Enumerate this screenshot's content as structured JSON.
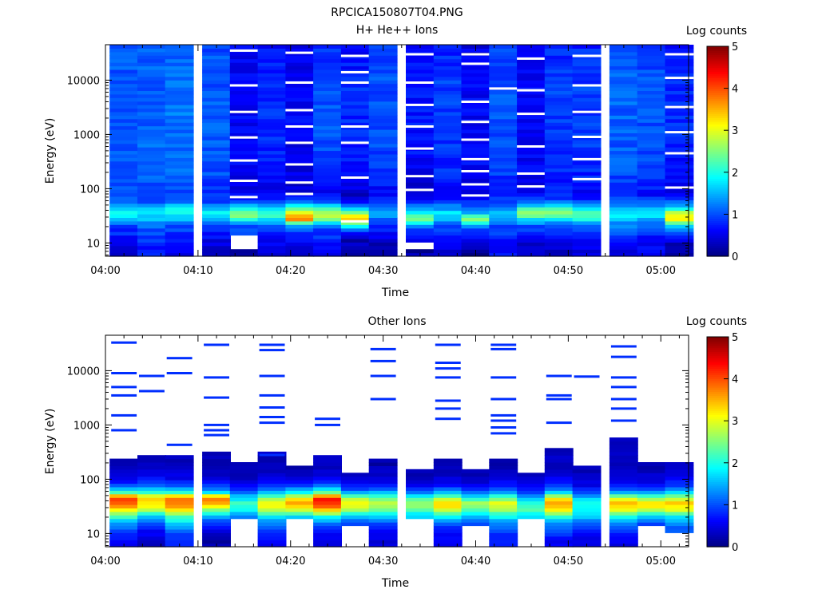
{
  "figure_title": "RPCICA150807T04.PNG",
  "chart_data": [
    {
      "type": "heatmap",
      "title": "H+ He++ Ions",
      "xlabel": "Time",
      "ylabel": "Energy (eV)",
      "yscale": "log",
      "ylim": [
        5.7,
        45000
      ],
      "xlim": [
        "04:00",
        "05:03"
      ],
      "x_ticks": [
        "04:00",
        "04:10",
        "04:20",
        "04:30",
        "04:40",
        "04:50",
        "05:00"
      ],
      "y_ticks": [
        "10",
        "100",
        "1000",
        "10000"
      ],
      "colorbar": {
        "label": "Log counts",
        "range": [
          0,
          5
        ],
        "ticks": [
          "0",
          "1",
          "2",
          "3",
          "4",
          "5"
        ],
        "colormap": "jet"
      },
      "grid": false,
      "time_bins": [
        "04:02",
        "04:05",
        "04:08",
        "04:12",
        "04:15",
        "04:18",
        "04:21",
        "04:24",
        "04:27",
        "04:30",
        "04:34",
        "04:37",
        "04:40",
        "04:43",
        "04:46",
        "04:49",
        "04:52",
        "04:56",
        "04:59",
        "05:02"
      ],
      "profile_energy_eV": [
        7,
        9,
        12,
        16,
        21,
        28,
        36,
        46,
        60,
        80,
        110,
        200,
        1000,
        10000,
        40000
      ],
      "columns": [
        {
          "time": "04:02",
          "profile": [
            0.5,
            0.6,
            0.7,
            0.8,
            0.9,
            1.5,
            2.0,
            1.6,
            1.0,
            0.9,
            1.0,
            1.0,
            1.0,
            1.05,
            1.1
          ],
          "gaps": []
        },
        {
          "time": "04:05",
          "profile": [
            0.7,
            0.8,
            0.9,
            1.0,
            1.1,
            1.6,
            1.9,
            1.5,
            1.0,
            0.9,
            1.0,
            1.1,
            1.1,
            1.1,
            1.1
          ],
          "gaps": []
        },
        {
          "time": "04:08",
          "profile": [
            0.6,
            0.7,
            0.8,
            0.9,
            1.0,
            1.5,
            2.0,
            1.7,
            1.1,
            0.9,
            1.0,
            1.1,
            1.2,
            1.15,
            1.1
          ],
          "gaps": []
        },
        {
          "time": "04:12",
          "profile": [
            0.3,
            0.4,
            0.6,
            0.8,
            1.0,
            1.4,
            1.8,
            1.4,
            0.9,
            0.8,
            0.9,
            1.0,
            1.05,
            1.05,
            1.0
          ],
          "gaps": []
        },
        {
          "time": "04:15",
          "profile": [
            0.2,
            null,
            null,
            0.9,
            1.1,
            2.2,
            2.6,
            1.8,
            0.9,
            0.5,
            0.5,
            0.6,
            0.6,
            0.6,
            0.6
          ],
          "gaps": [
            70,
            140,
            330,
            880,
            2600,
            8000,
            35000
          ]
        },
        {
          "time": "04:18",
          "profile": [
            0.4,
            0.5,
            0.6,
            0.9,
            1.2,
            1.8,
            2.2,
            1.6,
            0.8,
            0.5,
            0.6,
            0.8,
            0.8,
            0.8,
            0.7
          ],
          "gaps": []
        },
        {
          "time": "04:21",
          "profile": [
            0.3,
            0.4,
            0.6,
            0.9,
            1.4,
            3.8,
            3.2,
            2.2,
            1.0,
            0.5,
            0.4,
            0.5,
            0.6,
            0.6,
            0.5
          ],
          "gaps": [
            80,
            130,
            280,
            700,
            1400,
            2800,
            9000,
            32000
          ]
        },
        {
          "time": "04:24",
          "profile": [
            0.6,
            0.7,
            0.8,
            0.9,
            1.1,
            2.6,
            2.9,
            2.2,
            1.0,
            0.6,
            0.7,
            0.9,
            1.0,
            1.0,
            0.8
          ],
          "gaps": []
        },
        {
          "time": "04:27",
          "profile": [
            0.2,
            0.3,
            0.3,
            0.6,
            2.0,
            3.4,
            2.6,
            1.4,
            0.7,
            0.3,
            0.5,
            0.7,
            0.8,
            0.8,
            0.6
          ],
          "gaps": [
            25,
            160,
            700,
            1400,
            9000,
            14000,
            28000
          ]
        },
        {
          "time": "04:30",
          "profile": [
            0.2,
            0.3,
            0.4,
            0.6,
            0.9,
            1.2,
            1.6,
            1.3,
            0.8,
            0.5,
            0.7,
            0.9,
            1.0,
            1.0,
            0.9
          ],
          "gaps": []
        },
        {
          "time": "04:34",
          "profile": [
            0.2,
            null,
            0.5,
            0.8,
            1.3,
            2.6,
            2.0,
            1.4,
            0.8,
            0.3,
            0.4,
            0.6,
            0.7,
            0.7,
            0.6
          ],
          "gaps": [
            95,
            170,
            550,
            1400,
            3500,
            9000,
            30000
          ]
        },
        {
          "time": "04:37",
          "profile": [
            0.3,
            0.5,
            0.6,
            0.8,
            1.0,
            1.5,
            1.8,
            1.3,
            0.8,
            0.6,
            0.7,
            0.8,
            0.9,
            0.9,
            0.8
          ],
          "gaps": []
        },
        {
          "time": "04:40",
          "profile": [
            0.1,
            0.3,
            0.5,
            0.8,
            1.4,
            2.6,
            1.6,
            1.2,
            0.8,
            0.4,
            0.5,
            0.6,
            0.6,
            0.6,
            0.5
          ],
          "gaps": [
            75,
            120,
            210,
            350,
            800,
            1700,
            4000,
            20000,
            30000
          ]
        },
        {
          "time": "04:43",
          "profile": [
            0.6,
            0.7,
            0.8,
            0.9,
            1.0,
            1.3,
            1.6,
            1.3,
            0.9,
            0.7,
            0.8,
            0.9,
            1.0,
            1.0,
            0.9
          ],
          "gaps": [
            7000
          ]
        },
        {
          "time": "04:46",
          "profile": [
            0.3,
            0.4,
            0.6,
            0.8,
            1.0,
            1.8,
            2.8,
            2.0,
            1.0,
            0.5,
            0.5,
            0.6,
            0.6,
            0.6,
            0.5
          ],
          "gaps": [
            110,
            190,
            600,
            2400,
            6500,
            25000
          ]
        },
        {
          "time": "04:49",
          "profile": [
            0.3,
            0.5,
            0.6,
            0.8,
            1.0,
            1.7,
            2.6,
            1.9,
            1.0,
            0.7,
            0.7,
            0.8,
            0.9,
            0.9,
            0.8
          ],
          "gaps": []
        },
        {
          "time": "04:52",
          "profile": [
            0.4,
            0.5,
            0.7,
            0.9,
            1.1,
            2.0,
            2.4,
            1.7,
            0.9,
            0.6,
            0.7,
            0.8,
            0.9,
            0.9,
            0.8
          ],
          "gaps": [
            150,
            350,
            900,
            2600,
            8000,
            28000
          ]
        },
        {
          "time": "04:56",
          "profile": [
            0.5,
            0.6,
            0.8,
            1.0,
            1.2,
            1.6,
            1.9,
            1.5,
            1.0,
            0.8,
            0.9,
            1.0,
            1.1,
            1.1,
            1.0
          ],
          "gaps": []
        },
        {
          "time": "04:59",
          "profile": [
            0.5,
            0.6,
            0.7,
            0.9,
            1.1,
            1.5,
            1.9,
            1.4,
            0.9,
            0.7,
            0.8,
            0.9,
            1.0,
            1.0,
            0.9
          ],
          "gaps": []
        },
        {
          "time": "05:02",
          "profile": [
            0.2,
            0.3,
            0.5,
            0.9,
            1.6,
            3.3,
            2.8,
            1.8,
            1.0,
            0.5,
            0.6,
            0.7,
            0.8,
            0.8,
            0.7
          ],
          "gaps": [
            105,
            450,
            1100,
            3200,
            11000,
            30000
          ]
        }
      ]
    },
    {
      "type": "heatmap",
      "title": "Other Ions",
      "xlabel": "Time",
      "ylabel": "Energy (eV)",
      "yscale": "log",
      "ylim": [
        5.7,
        45000
      ],
      "xlim": [
        "04:00",
        "05:03"
      ],
      "x_ticks": [
        "04:00",
        "04:10",
        "04:20",
        "04:30",
        "04:40",
        "04:50",
        "05:00"
      ],
      "y_ticks": [
        "10",
        "100",
        "1000",
        "10000"
      ],
      "colorbar": {
        "label": "Log counts",
        "range": [
          0,
          5
        ],
        "ticks": [
          "0",
          "1",
          "2",
          "3",
          "4",
          "5"
        ],
        "colormap": "jet"
      },
      "grid": false,
      "time_bins": [
        "04:02",
        "04:05",
        "04:08",
        "04:12",
        "04:15",
        "04:18",
        "04:21",
        "04:24",
        "04:27",
        "04:30",
        "04:34",
        "04:37",
        "04:40",
        "04:43",
        "04:46",
        "04:49",
        "04:52",
        "04:56",
        "04:59",
        "05:02"
      ],
      "profile_energy_eV": [
        7,
        9,
        12,
        16,
        21,
        28,
        36,
        46,
        60,
        80,
        110,
        200
      ],
      "columns": [
        {
          "time": "04:02",
          "profile": [
            0.6,
            0.8,
            1.0,
            1.5,
            2.2,
            3.2,
            4.0,
            4.2,
            2.0,
            0.9,
            0.5,
            0.3
          ],
          "top_eV": 230,
          "hot_lines_eV": [
            800,
            1500,
            3500,
            5000,
            9000,
            33000
          ]
        },
        {
          "time": "04:05",
          "profile": [
            0.3,
            0.5,
            0.7,
            1.0,
            1.6,
            2.8,
            3.2,
            3.4,
            2.0,
            1.1,
            0.6,
            0.3
          ],
          "top_eV": 260,
          "hot_lines_eV": [
            4200,
            8000
          ]
        },
        {
          "time": "04:08",
          "profile": [
            0.8,
            0.9,
            1.2,
            1.7,
            2.3,
            3.4,
            3.8,
            3.9,
            1.8,
            0.9,
            0.5,
            0.3
          ],
          "top_eV": 300,
          "hot_lines_eV": [
            430,
            9000,
            17000
          ]
        },
        {
          "time": "04:12",
          "profile": [
            0.2,
            0.3,
            0.5,
            0.9,
            1.5,
            2.6,
            3.6,
            3.9,
            1.5,
            0.8,
            0.4,
            0.3
          ],
          "top_eV": 340,
          "hot_lines_eV": [
            650,
            800,
            1000,
            3200,
            7500,
            30000
          ]
        },
        {
          "time": "04:15",
          "profile": [
            null,
            null,
            null,
            null,
            1.3,
            1.9,
            2.2,
            1.7,
            1.0,
            0.6,
            0.3,
            0.2
          ],
          "top_eV": 200,
          "hot_lines_eV": []
        },
        {
          "time": "04:18",
          "profile": [
            0.6,
            0.7,
            0.9,
            1.3,
            1.8,
            2.8,
            3.2,
            2.6,
            1.4,
            0.8,
            0.4,
            0.3
          ],
          "top_eV": 340,
          "hot_lines_eV": [
            280,
            1100,
            1400,
            2100,
            3500,
            8000,
            24000,
            30000
          ]
        },
        {
          "time": "04:21",
          "profile": [
            null,
            null,
            null,
            null,
            1.7,
            2.9,
            3.6,
            3.2,
            1.7,
            0.8,
            0.4,
            0.2
          ],
          "top_eV": 180,
          "hot_lines_eV": []
        },
        {
          "time": "04:24",
          "profile": [
            0.4,
            0.6,
            0.8,
            1.2,
            2.0,
            3.5,
            4.2,
            4.3,
            2.1,
            1.0,
            0.5,
            0.3
          ],
          "top_eV": 270,
          "hot_lines_eV": [
            1000,
            1300
          ]
        },
        {
          "time": "04:27",
          "profile": [
            null,
            null,
            null,
            0.9,
            1.6,
            2.7,
            3.1,
            2.6,
            1.2,
            0.6,
            0.3,
            0.2
          ],
          "top_eV": 140,
          "hot_lines_eV": []
        },
        {
          "time": "04:30",
          "profile": [
            0.4,
            0.5,
            0.7,
            1.0,
            1.7,
            2.4,
            2.9,
            2.4,
            1.4,
            0.7,
            0.4,
            0.2
          ],
          "top_eV": 250,
          "hot_lines_eV": [
            3000,
            8000,
            15000,
            25000
          ]
        },
        {
          "time": "04:34",
          "profile": [
            null,
            null,
            null,
            null,
            1.6,
            2.3,
            2.7,
            2.2,
            1.0,
            0.5,
            0.3,
            0.2
          ],
          "top_eV": 150,
          "hot_lines_eV": []
        },
        {
          "time": "04:37",
          "profile": [
            0.5,
            0.6,
            0.8,
            1.1,
            1.9,
            3.0,
            3.4,
            2.6,
            1.3,
            0.7,
            0.4,
            0.2
          ],
          "top_eV": 250,
          "hot_lines_eV": [
            1300,
            2000,
            2800,
            7500,
            11000,
            14000,
            30000
          ]
        },
        {
          "time": "04:40",
          "profile": [
            null,
            null,
            null,
            0.9,
            1.5,
            2.3,
            2.7,
            2.0,
            1.0,
            0.5,
            0.3,
            0.2
          ],
          "top_eV": 160,
          "hot_lines_eV": []
        },
        {
          "time": "04:43",
          "profile": [
            0.7,
            0.8,
            1.0,
            1.3,
            1.9,
            2.7,
            3.1,
            2.4,
            1.2,
            0.7,
            0.4,
            0.2
          ],
          "top_eV": 230,
          "hot_lines_eV": [
            700,
            900,
            1200,
            1500,
            3000,
            7500,
            25000,
            30000
          ]
        },
        {
          "time": "04:46",
          "profile": [
            null,
            null,
            null,
            null,
            1.8,
            2.3,
            2.0,
            1.5,
            0.8,
            0.5,
            0.3,
            0.2
          ],
          "top_eV": 130,
          "hot_lines_eV": []
        },
        {
          "time": "04:49",
          "profile": [
            0.6,
            0.8,
            1.0,
            1.4,
            2.1,
            3.3,
            3.7,
            3.0,
            1.5,
            0.8,
            0.5,
            0.3
          ],
          "top_eV": 400,
          "hot_lines_eV": [
            1100,
            3000,
            3500,
            8000
          ]
        },
        {
          "time": "04:52",
          "profile": [
            0.5,
            0.6,
            0.8,
            1.2,
            1.6,
            1.9,
            2.1,
            1.6,
            0.9,
            0.5,
            0.3,
            0.2
          ],
          "top_eV": 170,
          "hot_lines_eV": [
            7800
          ]
        },
        {
          "time": "04:56",
          "profile": [
            0.5,
            0.7,
            0.9,
            1.3,
            2.0,
            3.1,
            3.5,
            2.8,
            1.3,
            0.7,
            0.4,
            0.3
          ],
          "top_eV": 600,
          "hot_lines_eV": [
            1200,
            2000,
            3000,
            5000,
            7500,
            18000,
            28000
          ]
        },
        {
          "time": "04:59",
          "profile": [
            null,
            null,
            null,
            1.0,
            1.6,
            2.8,
            3.4,
            2.5,
            1.2,
            0.6,
            0.4,
            0.2
          ],
          "top_eV": 200,
          "hot_lines_eV": []
        },
        {
          "time": "05:02",
          "profile": [
            null,
            null,
            1.0,
            1.3,
            1.9,
            3.0,
            3.4,
            2.7,
            1.6,
            0.9,
            0.5,
            0.3
          ],
          "top_eV": 200,
          "hot_lines_eV": []
        }
      ]
    }
  ]
}
